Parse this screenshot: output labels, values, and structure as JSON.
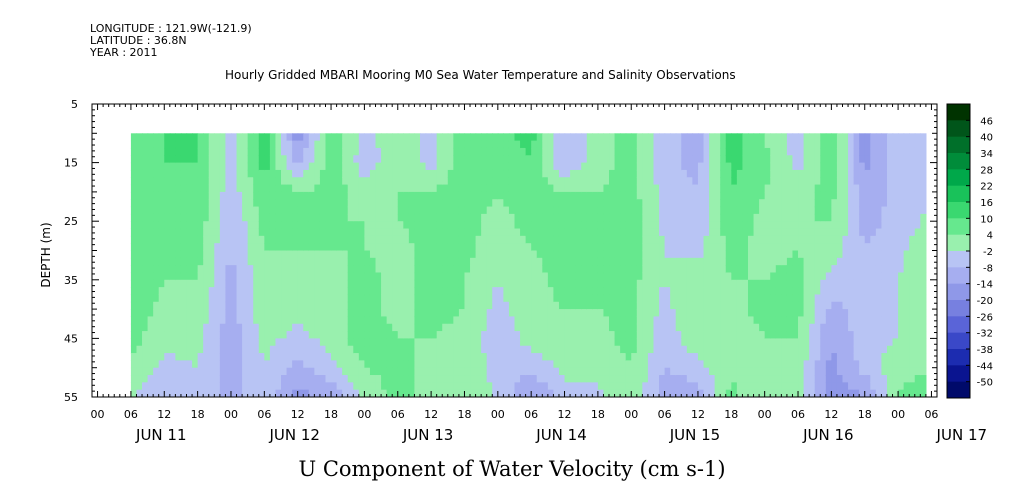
{
  "header": {
    "longitude": "LONGITUDE : 121.9W(-121.9)",
    "latitude": "LATITUDE : 36.8N",
    "year": "YEAR : 2011",
    "title": "Hourly Gridded MBARI Mooring M0 Sea Water Temperature and Salinity Observations"
  },
  "chart_data": {
    "type": "heatmap",
    "title": "Hourly Gridded MBARI Mooring M0 Sea Water Temperature and Salinity Observations",
    "xlabel": "U Component of Water Velocity (cm s-1)",
    "ylabel": "DEPTH (m)",
    "ylim": [
      55,
      5
    ],
    "yticks": [
      "5",
      "15",
      "25",
      "35",
      "45",
      "55"
    ],
    "x_hour_ticks": [
      "00",
      "06",
      "12",
      "18",
      "00",
      "06",
      "12",
      "18",
      "00",
      "06",
      "12",
      "18",
      "00",
      "06",
      "12",
      "18",
      "00",
      "06",
      "12",
      "18",
      "00",
      "06",
      "12",
      "18",
      "00",
      "06"
    ],
    "x_day_labels": [
      "JUN 11",
      "JUN 12",
      "JUN 13",
      "JUN 14",
      "JUN 15",
      "JUN 16",
      "JUN 17"
    ],
    "data_depth_range": [
      10,
      55
    ],
    "data_time_range_hours": [
      6,
      149
    ],
    "colorbar": {
      "labels": [
        "46",
        "40",
        "34",
        "28",
        "22",
        "16",
        "10",
        "4",
        "-2",
        "-8",
        "-14",
        "-20",
        "-26",
        "-32",
        "-38",
        "-44",
        "-50"
      ],
      "colors": [
        "#003300",
        "#00551a",
        "#00702a",
        "#008c3a",
        "#00a84a",
        "#19c25a",
        "#3ad870",
        "#66e88e",
        "#99f0ae",
        "#b8c4f4",
        "#a6aef0",
        "#8f98e8",
        "#7780e0",
        "#5a64d8",
        "#3a48c8",
        "#1c2cb0",
        "#0a1490",
        "#000a6a"
      ]
    },
    "profiles": [
      {
        "time": "Jun 11 06:00",
        "values": [
          4,
          4,
          4,
          4,
          6,
          8,
          8,
          6,
          2,
          -2
        ]
      },
      {
        "time": "Jun 11 12:00",
        "values": [
          10,
          10,
          8,
          6,
          6,
          4,
          2,
          0,
          -4,
          -6
        ]
      },
      {
        "time": "Jun 11 18:00",
        "values": [
          10,
          10,
          10,
          8,
          6,
          4,
          2,
          0,
          -2,
          -4
        ]
      },
      {
        "time": "Jun 12 00:00",
        "values": [
          -6,
          -6,
          -6,
          -8,
          -8,
          -10,
          -10,
          -12,
          -10,
          -10
        ]
      },
      {
        "time": "Jun 12 06:00",
        "values": [
          14,
          12,
          10,
          6,
          4,
          2,
          2,
          0,
          -2,
          -4
        ]
      },
      {
        "time": "Jun 12 12:00",
        "values": [
          -18,
          -10,
          4,
          6,
          4,
          2,
          0,
          -4,
          -10,
          -16
        ]
      },
      {
        "time": "Jun 12 18:00",
        "values": [
          8,
          8,
          6,
          4,
          4,
          2,
          2,
          0,
          -4,
          -12
        ]
      },
      {
        "time": "Jun 13 00:00",
        "values": [
          -4,
          -6,
          2,
          4,
          4,
          6,
          6,
          8,
          4,
          0
        ]
      },
      {
        "time": "Jun 13 06:00",
        "values": [
          2,
          2,
          4,
          4,
          2,
          2,
          2,
          4,
          6,
          6
        ]
      },
      {
        "time": "Jun 13 12:00",
        "values": [
          -4,
          -4,
          4,
          6,
          6,
          6,
          6,
          4,
          2,
          2
        ]
      },
      {
        "time": "Jun 13 18:00",
        "values": [
          8,
          8,
          8,
          6,
          6,
          4,
          4,
          2,
          2,
          0
        ]
      },
      {
        "time": "Jun 14 00:00",
        "values": [
          8,
          6,
          4,
          2,
          0,
          -2,
          -4,
          -6,
          -4,
          -2
        ]
      },
      {
        "time": "Jun 14 06:00",
        "values": [
          12,
          10,
          8,
          6,
          4,
          2,
          2,
          0,
          -6,
          -16
        ]
      },
      {
        "time": "Jun 14 12:00",
        "values": [
          -8,
          -8,
          4,
          6,
          6,
          6,
          4,
          2,
          0,
          -4
        ]
      },
      {
        "time": "Jun 14 18:00",
        "values": [
          2,
          2,
          4,
          4,
          4,
          4,
          4,
          2,
          0,
          -4
        ]
      },
      {
        "time": "Jun 15 00:00",
        "values": [
          6,
          6,
          6,
          8,
          8,
          6,
          6,
          6,
          4,
          4
        ]
      },
      {
        "time": "Jun 15 06:00",
        "values": [
          -6,
          -6,
          -4,
          -4,
          -2,
          -2,
          -4,
          -6,
          -8,
          -12
        ]
      },
      {
        "time": "Jun 15 12:00",
        "values": [
          -10,
          -10,
          -8,
          -6,
          -4,
          2,
          4,
          2,
          -4,
          -12
        ]
      },
      {
        "time": "Jun 15 18:00",
        "values": [
          14,
          12,
          10,
          8,
          6,
          4,
          2,
          0,
          2,
          6
        ]
      },
      {
        "time": "Jun 16 00:00",
        "values": [
          4,
          6,
          4,
          2,
          2,
          4,
          6,
          4,
          2,
          -2
        ]
      },
      {
        "time": "Jun 16 06:00",
        "values": [
          -6,
          -4,
          2,
          4,
          4,
          6,
          6,
          4,
          2,
          0
        ]
      },
      {
        "time": "Jun 16 12:00",
        "values": [
          10,
          8,
          6,
          4,
          2,
          -4,
          -10,
          -14,
          -16,
          -18
        ]
      },
      {
        "time": "Jun 16 18:00",
        "values": [
          -18,
          -16,
          -12,
          -10,
          -8,
          -8,
          -6,
          -4,
          -6,
          -14
        ]
      },
      {
        "time": "Jun 17 00:00",
        "values": [
          -2,
          -4,
          -6,
          -6,
          -4,
          -2,
          -2,
          -2,
          2,
          4
        ]
      },
      {
        "time": "Jun 17 06:00",
        "values": [
          -8,
          -6,
          -4,
          0,
          4,
          6,
          4,
          2,
          4,
          8
        ]
      }
    ],
    "profile_depths": [
      10,
      15,
      20,
      25,
      30,
      35,
      40,
      45,
      50,
      55
    ]
  }
}
